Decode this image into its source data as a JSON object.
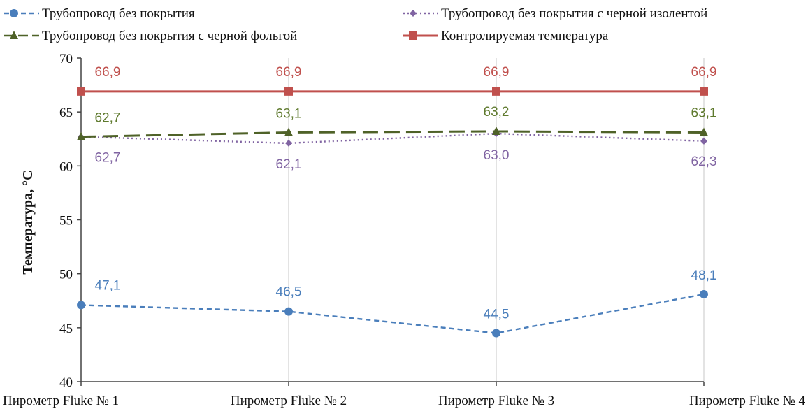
{
  "chart_data": {
    "type": "line",
    "title": "",
    "xlabel": "",
    "ylabel": "Температура, °С",
    "ylim": [
      40,
      70
    ],
    "yticks": [
      40,
      45,
      50,
      55,
      60,
      65,
      70
    ],
    "grid": "vertical",
    "legend_position": "top",
    "categories": [
      "Пирометр Fluke № 1",
      "Пирометр Fluke № 2",
      "Пирометр Fluke № 3",
      "Пирометр Fluke № 4"
    ],
    "series": [
      {
        "name": "Трубопровод без покрытия",
        "values": [
          47.1,
          46.5,
          44.5,
          48.1
        ],
        "labels": [
          "47,1",
          "46,5",
          "44,5",
          "48,1"
        ],
        "color": "#4a7ebb",
        "line_style": "dashed",
        "marker": "circle"
      },
      {
        "name": "Трубопровод без покрытия с черной изолентой",
        "values": [
          62.7,
          62.1,
          63.0,
          62.3
        ],
        "labels": [
          "62,7",
          "62,1",
          "63,0",
          "62,3"
        ],
        "color": "#8064a2",
        "line_style": "dotted",
        "marker": "diamond"
      },
      {
        "name": "Трубопровод без покрытия с черной фольгой",
        "values": [
          62.7,
          63.1,
          63.2,
          63.1
        ],
        "labels": [
          "62,7",
          "63,1",
          "63,2",
          "63,1"
        ],
        "color": "#4f6228",
        "line_style": "long-dash",
        "marker": "triangle"
      },
      {
        "name": "Контролируемая температура",
        "values": [
          66.9,
          66.9,
          66.9,
          66.9
        ],
        "labels": [
          "66,9",
          "66,9",
          "66,9",
          "66,9"
        ],
        "color": "#c0504d",
        "line_style": "solid",
        "marker": "square"
      }
    ]
  }
}
